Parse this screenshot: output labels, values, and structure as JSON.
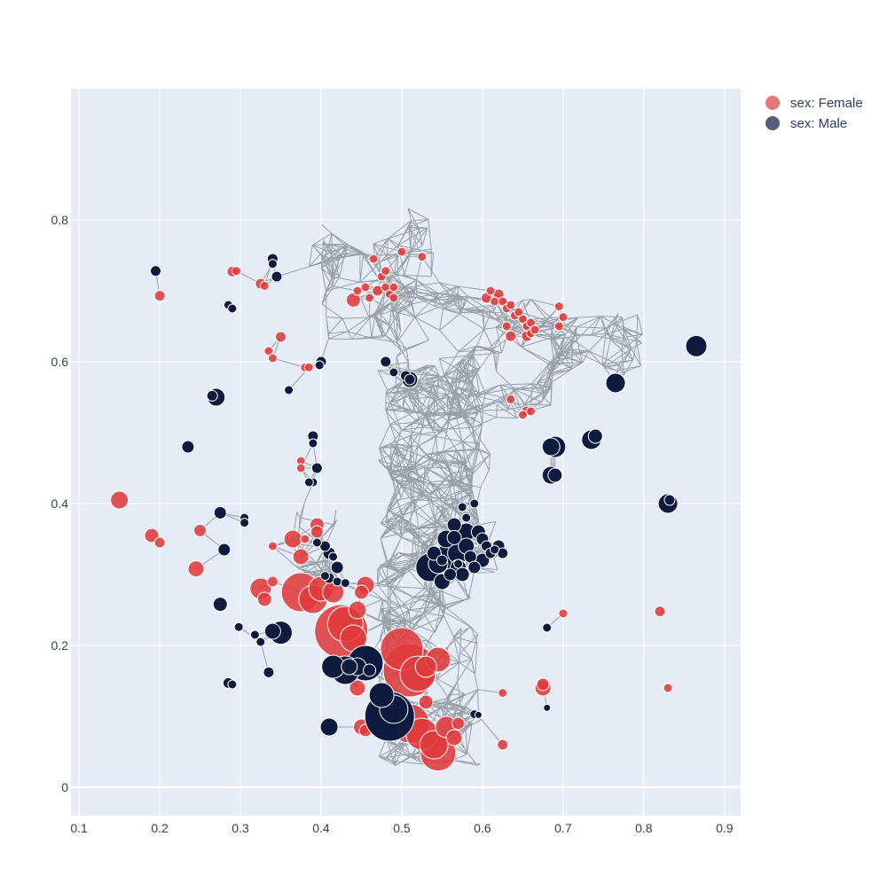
{
  "chart_data": {
    "type": "scatter",
    "title": "",
    "xlabel": "",
    "ylabel": "",
    "xlim": [
      0.09,
      0.92
    ],
    "ylim": [
      -0.04,
      0.985
    ],
    "x_ticks": [
      "0.1",
      "0.2",
      "0.3",
      "0.4",
      "0.5",
      "0.6",
      "0.7",
      "0.8",
      "0.9"
    ],
    "y_ticks": [
      "0",
      "0.2",
      "0.4",
      "0.6",
      "0.8"
    ],
    "grid": true,
    "legend_position": "top-right",
    "background_color": "#E5ECF6",
    "edge_color": "#8E979E",
    "series": [
      {
        "name": "sex: Female",
        "color": "#E03A3C",
        "points": [
          [
            0.15,
            0.405,
            10
          ],
          [
            0.19,
            0.355,
            8
          ],
          [
            0.2,
            0.345,
            6
          ],
          [
            0.2,
            0.693,
            6
          ],
          [
            0.25,
            0.362,
            7
          ],
          [
            0.245,
            0.308,
            9
          ],
          [
            0.29,
            0.727,
            6
          ],
          [
            0.295,
            0.728,
            5
          ],
          [
            0.325,
            0.71,
            6
          ],
          [
            0.33,
            0.707,
            5
          ],
          [
            0.35,
            0.635,
            6
          ],
          [
            0.335,
            0.615,
            5
          ],
          [
            0.34,
            0.605,
            5
          ],
          [
            0.38,
            0.592,
            5
          ],
          [
            0.385,
            0.592,
            5
          ],
          [
            0.375,
            0.46,
            5
          ],
          [
            0.375,
            0.45,
            5
          ],
          [
            0.395,
            0.37,
            8
          ],
          [
            0.395,
            0.36,
            7
          ],
          [
            0.365,
            0.35,
            10
          ],
          [
            0.375,
            0.325,
            9
          ],
          [
            0.38,
            0.35,
            5
          ],
          [
            0.34,
            0.34,
            5
          ],
          [
            0.325,
            0.28,
            12
          ],
          [
            0.33,
            0.265,
            8
          ],
          [
            0.34,
            0.29,
            6
          ],
          [
            0.375,
            0.275,
            22
          ],
          [
            0.39,
            0.265,
            16
          ],
          [
            0.4,
            0.28,
            14
          ],
          [
            0.415,
            0.275,
            12
          ],
          [
            0.425,
            0.22,
            30
          ],
          [
            0.43,
            0.23,
            20
          ],
          [
            0.44,
            0.21,
            15
          ],
          [
            0.445,
            0.25,
            10
          ],
          [
            0.455,
            0.285,
            10
          ],
          [
            0.45,
            0.275,
            8
          ],
          [
            0.445,
            0.14,
            9
          ],
          [
            0.45,
            0.085,
            9
          ],
          [
            0.455,
            0.08,
            7
          ],
          [
            0.5,
            0.195,
            24
          ],
          [
            0.51,
            0.165,
            30
          ],
          [
            0.52,
            0.16,
            20
          ],
          [
            0.53,
            0.17,
            12
          ],
          [
            0.545,
            0.18,
            14
          ],
          [
            0.51,
            0.09,
            22
          ],
          [
            0.525,
            0.075,
            18
          ],
          [
            0.54,
            0.06,
            16
          ],
          [
            0.545,
            0.048,
            20
          ],
          [
            0.555,
            0.085,
            12
          ],
          [
            0.565,
            0.07,
            9
          ],
          [
            0.57,
            0.09,
            7
          ],
          [
            0.53,
            0.12,
            8
          ],
          [
            0.625,
            0.06,
            6
          ],
          [
            0.625,
            0.133,
            5
          ],
          [
            0.675,
            0.14,
            9
          ],
          [
            0.675,
            0.145,
            7
          ],
          [
            0.7,
            0.245,
            5
          ],
          [
            0.82,
            0.248,
            6
          ],
          [
            0.83,
            0.14,
            5
          ],
          [
            0.44,
            0.687,
            8
          ],
          [
            0.445,
            0.7,
            5
          ],
          [
            0.455,
            0.705,
            5
          ],
          [
            0.46,
            0.69,
            5
          ],
          [
            0.47,
            0.7,
            6
          ],
          [
            0.475,
            0.72,
            5
          ],
          [
            0.48,
            0.705,
            5
          ],
          [
            0.485,
            0.695,
            5
          ],
          [
            0.49,
            0.705,
            5
          ],
          [
            0.49,
            0.69,
            5
          ],
          [
            0.465,
            0.745,
            5
          ],
          [
            0.48,
            0.728,
            5
          ],
          [
            0.5,
            0.755,
            5
          ],
          [
            0.525,
            0.748,
            5
          ],
          [
            0.605,
            0.69,
            6
          ],
          [
            0.61,
            0.7,
            5
          ],
          [
            0.615,
            0.685,
            5
          ],
          [
            0.62,
            0.695,
            6
          ],
          [
            0.625,
            0.685,
            5
          ],
          [
            0.63,
            0.675,
            5
          ],
          [
            0.635,
            0.68,
            5
          ],
          [
            0.64,
            0.665,
            5
          ],
          [
            0.645,
            0.67,
            5
          ],
          [
            0.65,
            0.66,
            5
          ],
          [
            0.655,
            0.65,
            5
          ],
          [
            0.66,
            0.655,
            5
          ],
          [
            0.635,
            0.636,
            6
          ],
          [
            0.655,
            0.636,
            6
          ],
          [
            0.66,
            0.64,
            5
          ],
          [
            0.665,
            0.645,
            5
          ],
          [
            0.695,
            0.678,
            5
          ],
          [
            0.7,
            0.663,
            5
          ],
          [
            0.695,
            0.65,
            5
          ],
          [
            0.655,
            0.53,
            6
          ],
          [
            0.66,
            0.53,
            5
          ],
          [
            0.65,
            0.525,
            5
          ],
          [
            0.635,
            0.547,
            5
          ],
          [
            0.63,
            0.65,
            5
          ]
        ]
      },
      {
        "name": "sex: Male",
        "color": "#0D1B3E",
        "points": [
          [
            0.195,
            0.728,
            6
          ],
          [
            0.27,
            0.55,
            10
          ],
          [
            0.265,
            0.552,
            6
          ],
          [
            0.235,
            0.48,
            7
          ],
          [
            0.285,
            0.68,
            5
          ],
          [
            0.29,
            0.675,
            5
          ],
          [
            0.34,
            0.745,
            6
          ],
          [
            0.34,
            0.738,
            5
          ],
          [
            0.345,
            0.72,
            6
          ],
          [
            0.36,
            0.56,
            5
          ],
          [
            0.4,
            0.6,
            6
          ],
          [
            0.398,
            0.595,
            5
          ],
          [
            0.39,
            0.495,
            6
          ],
          [
            0.39,
            0.485,
            5
          ],
          [
            0.395,
            0.45,
            6
          ],
          [
            0.39,
            0.43,
            5
          ],
          [
            0.385,
            0.43,
            5
          ],
          [
            0.275,
            0.387,
            7
          ],
          [
            0.305,
            0.38,
            5
          ],
          [
            0.305,
            0.373,
            5
          ],
          [
            0.28,
            0.335,
            7
          ],
          [
            0.395,
            0.345,
            5
          ],
          [
            0.405,
            0.34,
            6
          ],
          [
            0.41,
            0.33,
            7
          ],
          [
            0.415,
            0.325,
            5
          ],
          [
            0.42,
            0.31,
            7
          ],
          [
            0.41,
            0.295,
            6
          ],
          [
            0.42,
            0.29,
            5
          ],
          [
            0.43,
            0.288,
            5
          ],
          [
            0.405,
            0.298,
            5
          ],
          [
            0.275,
            0.258,
            8
          ],
          [
            0.298,
            0.226,
            5
          ],
          [
            0.318,
            0.215,
            5
          ],
          [
            0.325,
            0.205,
            5
          ],
          [
            0.34,
            0.22,
            9
          ],
          [
            0.35,
            0.218,
            13
          ],
          [
            0.285,
            0.147,
            6
          ],
          [
            0.29,
            0.145,
            5
          ],
          [
            0.335,
            0.162,
            6
          ],
          [
            0.41,
            0.085,
            10
          ],
          [
            0.415,
            0.17,
            13
          ],
          [
            0.43,
            0.165,
            16
          ],
          [
            0.435,
            0.17,
            9
          ],
          [
            0.445,
            0.17,
            10
          ],
          [
            0.455,
            0.175,
            20
          ],
          [
            0.46,
            0.165,
            7
          ],
          [
            0.475,
            0.13,
            14
          ],
          [
            0.485,
            0.1,
            28
          ],
          [
            0.49,
            0.11,
            16
          ],
          [
            0.48,
            0.6,
            6
          ],
          [
            0.49,
            0.585,
            5
          ],
          [
            0.505,
            0.58,
            6
          ],
          [
            0.51,
            0.575,
            9
          ],
          [
            0.51,
            0.575,
            6
          ],
          [
            0.56,
            0.325,
            16
          ],
          [
            0.57,
            0.33,
            12
          ],
          [
            0.565,
            0.37,
            8
          ],
          [
            0.58,
            0.36,
            10
          ],
          [
            0.58,
            0.34,
            9
          ],
          [
            0.585,
            0.325,
            7
          ],
          [
            0.57,
            0.31,
            9
          ],
          [
            0.575,
            0.3,
            8
          ],
          [
            0.56,
            0.3,
            7
          ],
          [
            0.55,
            0.29,
            9
          ],
          [
            0.545,
            0.315,
            11
          ],
          [
            0.555,
            0.35,
            10
          ],
          [
            0.565,
            0.352,
            8
          ],
          [
            0.58,
            0.38,
            5
          ],
          [
            0.59,
            0.4,
            5
          ],
          [
            0.595,
            0.36,
            8
          ],
          [
            0.6,
            0.35,
            7
          ],
          [
            0.605,
            0.34,
            6
          ],
          [
            0.61,
            0.33,
            6
          ],
          [
            0.615,
            0.335,
            5
          ],
          [
            0.62,
            0.34,
            7
          ],
          [
            0.625,
            0.33,
            6
          ],
          [
            0.6,
            0.32,
            8
          ],
          [
            0.59,
            0.31,
            7
          ],
          [
            0.575,
            0.395,
            5
          ],
          [
            0.535,
            0.31,
            16
          ],
          [
            0.54,
            0.33,
            8
          ],
          [
            0.55,
            0.32,
            6
          ],
          [
            0.57,
            0.315,
            5
          ],
          [
            0.685,
            0.48,
            10
          ],
          [
            0.69,
            0.48,
            12
          ],
          [
            0.685,
            0.44,
            10
          ],
          [
            0.69,
            0.44,
            8
          ],
          [
            0.735,
            0.49,
            11
          ],
          [
            0.74,
            0.495,
            8
          ],
          [
            0.765,
            0.57,
            11
          ],
          [
            0.83,
            0.4,
            11
          ],
          [
            0.832,
            0.405,
            6
          ],
          [
            0.865,
            0.622,
            12
          ],
          [
            0.68,
            0.225,
            5
          ],
          [
            0.68,
            0.112,
            4
          ],
          [
            0.59,
            0.103,
            5
          ],
          [
            0.595,
            0.102,
            4
          ]
        ]
      }
    ]
  }
}
